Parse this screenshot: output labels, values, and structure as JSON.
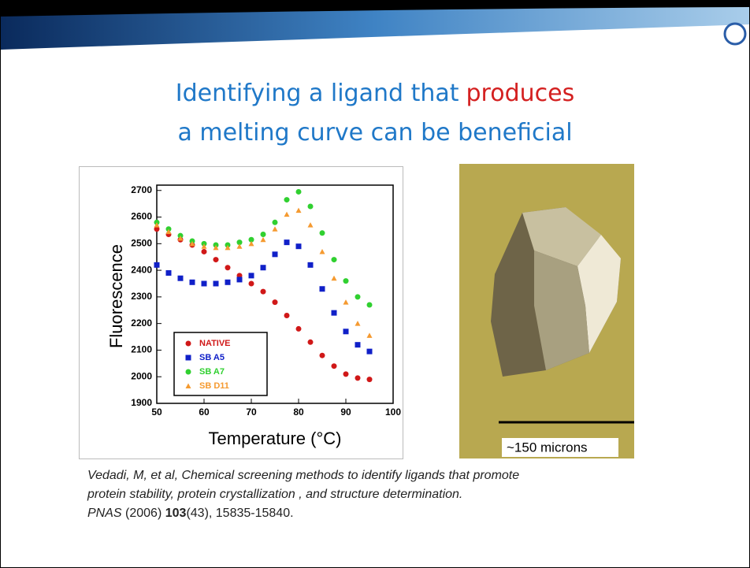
{
  "title": {
    "part1": "Identifying a ligand that",
    "part2": "produces",
    "line2": "a melting curve can be beneficial"
  },
  "chart_data": {
    "type": "scatter",
    "xlabel": "Temperature (°C)",
    "ylabel": "Fluorescence",
    "x": [
      50,
      52.5,
      55,
      57.5,
      60,
      62.5,
      65,
      67.5,
      70,
      72.5,
      75,
      77.5,
      80,
      82.5,
      85,
      87.5,
      90,
      92.5,
      95
    ],
    "series": [
      {
        "name": "NATIVE",
        "color": "#d01818",
        "marker": "circle",
        "values": [
          2555,
          2535,
          2515,
          2495,
          2470,
          2440,
          2410,
          2380,
          2350,
          2320,
          2280,
          2230,
          2180,
          2130,
          2080,
          2040,
          2010,
          1995,
          1990
        ]
      },
      {
        "name": "SB A5",
        "color": "#1020c8",
        "marker": "square",
        "values": [
          2420,
          2390,
          2370,
          2355,
          2350,
          2350,
          2355,
          2365,
          2380,
          2410,
          2460,
          2505,
          2490,
          2420,
          2330,
          2240,
          2170,
          2120,
          2095
        ]
      },
      {
        "name": "SB A7",
        "color": "#30d030",
        "marker": "circle",
        "values": [
          2580,
          2555,
          2530,
          2510,
          2500,
          2495,
          2495,
          2505,
          2515,
          2535,
          2580,
          2665,
          2695,
          2640,
          2540,
          2440,
          2360,
          2300,
          2270
        ]
      },
      {
        "name": "SB D11",
        "color": "#f59a30",
        "marker": "triangle",
        "values": [
          2570,
          2545,
          2520,
          2500,
          2490,
          2485,
          2485,
          2490,
          2500,
          2515,
          2555,
          2610,
          2625,
          2570,
          2470,
          2370,
          2280,
          2200,
          2155
        ]
      }
    ],
    "xlim": [
      50,
      100
    ],
    "xticks": [
      50,
      60,
      70,
      80,
      90,
      100
    ],
    "ylim": [
      1900,
      2720
    ],
    "yticks": [
      1900,
      2000,
      2100,
      2200,
      2300,
      2400,
      2500,
      2600,
      2700
    ]
  },
  "photo": {
    "caption": "~150 microns"
  },
  "citation": {
    "line1": "Vedadi, M, et al, Chemical screening methods to identify ligands that promote",
    "line2": "protein stability, protein crystallization , and structure determination.",
    "journal": "PNAS",
    "year": "(2006)",
    "volume": "103",
    "rest": "(43), 15835-15840."
  }
}
